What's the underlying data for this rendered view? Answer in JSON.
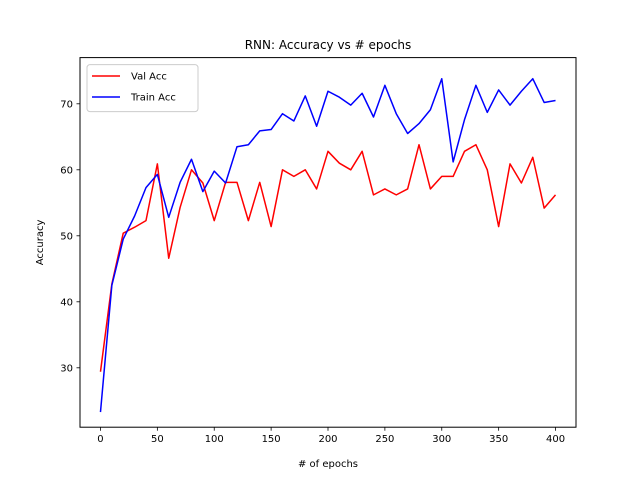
{
  "chart_data": {
    "type": "line",
    "title": "RNN: Accuracy vs # epochs",
    "xlabel": "# of epochs",
    "ylabel": "Accuracy",
    "xlim": [
      -18,
      418
    ],
    "ylim": [
      21,
      77
    ],
    "xticks": [
      0,
      50,
      100,
      150,
      200,
      250,
      300,
      350,
      400
    ],
    "yticks": [
      30,
      40,
      50,
      60,
      70
    ],
    "grid": false,
    "legend_position": "top-left",
    "x": [
      0,
      10,
      20,
      30,
      40,
      50,
      60,
      70,
      80,
      90,
      100,
      110,
      120,
      130,
      140,
      150,
      160,
      170,
      180,
      190,
      200,
      210,
      220,
      230,
      240,
      250,
      260,
      270,
      280,
      290,
      300,
      310,
      320,
      330,
      340,
      350,
      360,
      370,
      380,
      390,
      400
    ],
    "series": [
      {
        "name": "Val Acc",
        "color": "#ff0000",
        "values": [
          29.4,
          42.7,
          50.4,
          51.3,
          52.3,
          60.9,
          46.6,
          54.3,
          60.0,
          58.0,
          52.3,
          58.1,
          58.1,
          52.3,
          58.1,
          51.4,
          60.0,
          59.0,
          60.0,
          57.1,
          62.8,
          61.0,
          60.0,
          62.8,
          56.2,
          57.1,
          56.2,
          57.1,
          63.8,
          57.1,
          59.0,
          59.0,
          62.8,
          63.8,
          60.0,
          51.4,
          60.9,
          58.0,
          61.9,
          54.2,
          56.2
        ]
      },
      {
        "name": "Train Acc",
        "color": "#0000ff",
        "values": [
          23.3,
          42.5,
          49.5,
          53.0,
          57.3,
          59.3,
          52.8,
          58.1,
          61.6,
          56.7,
          59.8,
          58.0,
          63.5,
          63.8,
          65.9,
          66.1,
          68.5,
          67.4,
          71.2,
          66.6,
          71.9,
          71.0,
          69.8,
          71.6,
          68.0,
          72.8,
          68.5,
          65.5,
          67.0,
          69.1,
          73.8,
          61.2,
          67.6,
          72.8,
          68.7,
          72.1,
          69.8,
          71.9,
          73.8,
          70.2,
          70.5
        ]
      }
    ]
  }
}
